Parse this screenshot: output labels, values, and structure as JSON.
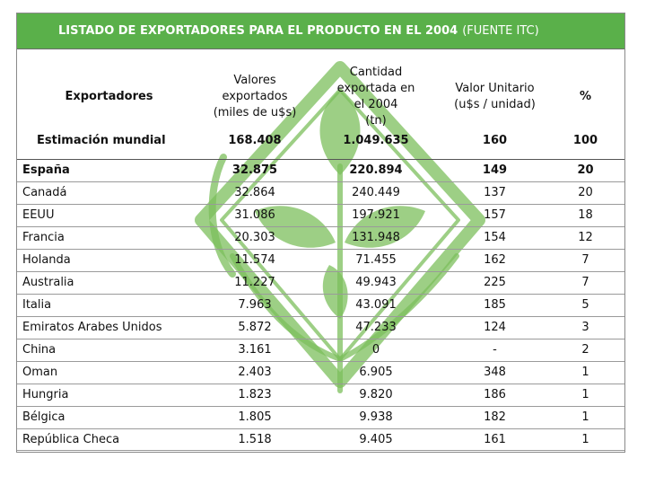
{
  "title": {
    "main": "LISTADO DE EXPORTADORES PARA EL PRODUCTO EN EL 2004",
    "note": "(FUENTE ITC)"
  },
  "headers": {
    "exportadores": "Exportadores",
    "valores": [
      "Valores",
      "exportados",
      "(miles de u$s)"
    ],
    "cantidad": [
      "Cantidad",
      "exportada en",
      "el 2004",
      "(tn)"
    ],
    "valor_unitario": [
      "Valor Unitario",
      "(u$s / unidad)"
    ],
    "porcentaje": "%"
  },
  "world": {
    "label": "Estimación mundial",
    "valores": "168.408",
    "cantidad": "1.049.635",
    "valor_unitario": "160",
    "porcentaje": "100"
  },
  "rows": [
    {
      "pais": "España",
      "valores": "32.875",
      "cantidad": "220.894",
      "valor_unitario": "149",
      "porcentaje": "20"
    },
    {
      "pais": "Canadá",
      "valores": "32.864",
      "cantidad": "240.449",
      "valor_unitario": "137",
      "porcentaje": "20"
    },
    {
      "pais": "EEUU",
      "valores": "31.086",
      "cantidad": "197.921",
      "valor_unitario": "157",
      "porcentaje": "18"
    },
    {
      "pais": "Francia",
      "valores": "20.303",
      "cantidad": "131.948",
      "valor_unitario": "154",
      "porcentaje": "12"
    },
    {
      "pais": "Holanda",
      "valores": "11.574",
      "cantidad": "71.455",
      "valor_unitario": "162",
      "porcentaje": "7"
    },
    {
      "pais": "Australia",
      "valores": "11.227",
      "cantidad": "49.943",
      "valor_unitario": "225",
      "porcentaje": "7"
    },
    {
      "pais": "Italia",
      "valores": "7.963",
      "cantidad": "43.091",
      "valor_unitario": "185",
      "porcentaje": "5"
    },
    {
      "pais": "Emiratos Arabes Unidos",
      "valores": "5.872",
      "cantidad": "47.233",
      "valor_unitario": "124",
      "porcentaje": "3"
    },
    {
      "pais": "China",
      "valores": "3.161",
      "cantidad": "0",
      "valor_unitario": "-",
      "porcentaje": "2"
    },
    {
      "pais": "Oman",
      "valores": "2.403",
      "cantidad": "6.905",
      "valor_unitario": "348",
      "porcentaje": "1"
    },
    {
      "pais": "Hungria",
      "valores": "1.823",
      "cantidad": "9.820",
      "valor_unitario": "186",
      "porcentaje": "1"
    },
    {
      "pais": "Bélgica",
      "valores": "1.805",
      "cantidad": "9.938",
      "valor_unitario": "182",
      "porcentaje": "1"
    },
    {
      "pais": "República Checa",
      "valores": "1.518",
      "cantidad": "9.405",
      "valor_unitario": "161",
      "porcentaje": "1"
    }
  ],
  "colors": {
    "title_bg": "#5ab04a",
    "watermark": "#7cbf5c"
  }
}
